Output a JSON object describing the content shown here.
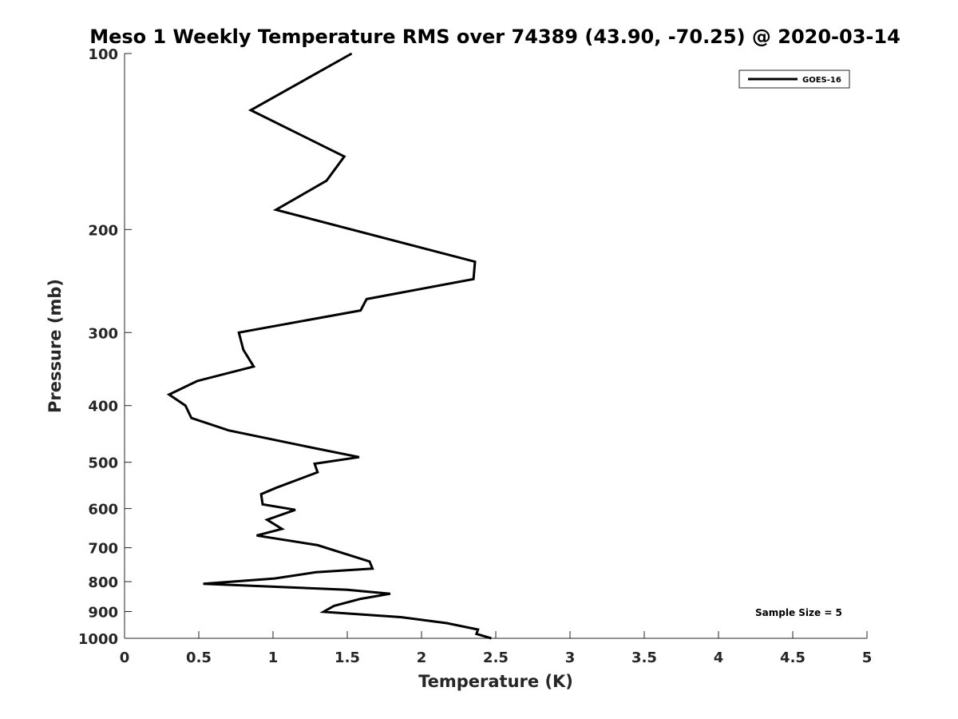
{
  "chart_data": {
    "type": "line",
    "title": "Meso 1 Weekly Temperature RMS over 74389 (43.90, -70.25) @ 2020-03-14",
    "xlabel": "Temperature (K)",
    "ylabel": "Pressure (mb)",
    "xlim": [
      0,
      5
    ],
    "ylim": [
      100,
      1000
    ],
    "yscale": "log",
    "grid": false,
    "legend_position": "top-right",
    "x_ticks": [
      0,
      0.5,
      1,
      1.5,
      2,
      2.5,
      3,
      3.5,
      4,
      4.5,
      5
    ],
    "x_tick_labels": [
      "0",
      "0.5",
      "1",
      "1.5",
      "2",
      "2.5",
      "3",
      "3.5",
      "4",
      "4.5",
      "5"
    ],
    "y_ticks": [
      100,
      200,
      300,
      400,
      500,
      600,
      700,
      800,
      900,
      1000
    ],
    "y_tick_labels": [
      "100",
      "200",
      "300",
      "400",
      "500",
      "600",
      "700",
      "800",
      "900",
      "1000"
    ],
    "series": [
      {
        "name": "GOES-16",
        "color": "#000000",
        "points": [
          [
            1.53,
            100
          ],
          [
            0.85,
            125
          ],
          [
            1.48,
            150
          ],
          [
            1.36,
            165
          ],
          [
            1.02,
            185
          ],
          [
            2.36,
            227
          ],
          [
            2.35,
            243
          ],
          [
            1.63,
            263
          ],
          [
            1.59,
            275
          ],
          [
            0.77,
            300
          ],
          [
            0.8,
            321
          ],
          [
            0.87,
            343
          ],
          [
            0.49,
            363
          ],
          [
            0.3,
            383
          ],
          [
            0.41,
            400
          ],
          [
            0.45,
            420
          ],
          [
            0.7,
            441
          ],
          [
            1.28,
            473
          ],
          [
            1.58,
            490
          ],
          [
            1.28,
            503
          ],
          [
            1.3,
            520
          ],
          [
            1.02,
            553
          ],
          [
            0.92,
            567
          ],
          [
            0.93,
            590
          ],
          [
            1.15,
            603
          ],
          [
            0.96,
            627
          ],
          [
            1.06,
            650
          ],
          [
            0.89,
            667
          ],
          [
            1.3,
            693
          ],
          [
            1.65,
            739
          ],
          [
            1.67,
            760
          ],
          [
            1.29,
            771
          ],
          [
            1.01,
            790
          ],
          [
            0.53,
            807
          ],
          [
            1.5,
            826
          ],
          [
            1.79,
            839
          ],
          [
            1.59,
            856
          ],
          [
            1.41,
            880
          ],
          [
            1.34,
            901
          ],
          [
            1.86,
            920
          ],
          [
            2.17,
            942
          ],
          [
            2.38,
            966
          ],
          [
            2.37,
            983
          ],
          [
            2.47,
            1000
          ]
        ]
      }
    ],
    "annotations": [
      {
        "text": "Sample Size = 5",
        "position": "bottom-right"
      }
    ]
  }
}
